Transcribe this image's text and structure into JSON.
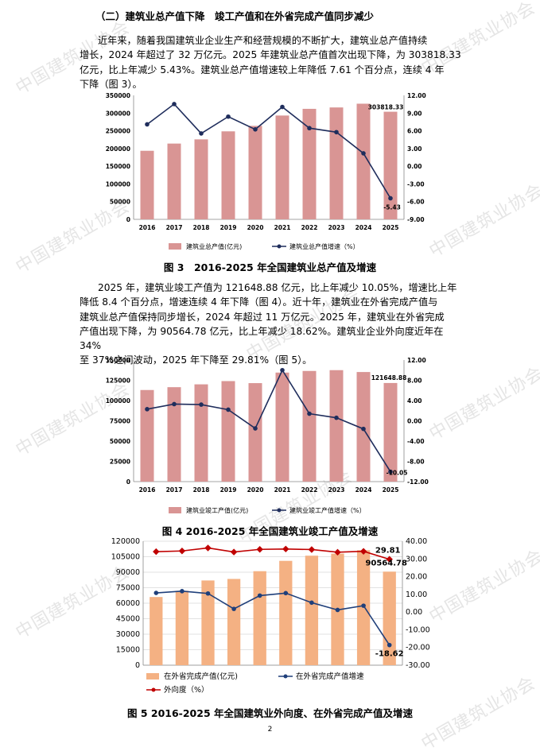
{
  "heading": "（二）建筑业总产值下降　竣工产值和在外省完成产值同步减少",
  "para1": [
    "近年来，随着我国建筑业企业生产和经营规模的不断扩大，建筑业总产值持续",
    "增长，2024 年超过了 32 万亿元。2025 年建筑业总产值首次出现下降，为 303818.33",
    "亿元，比上年减少 5.43%。建筑业总产值增速较上年降低 7.61 个百分点，连续 4 年",
    "下降（图 3）。"
  ],
  "para2": [
    "2025 年，建筑业竣工产值为 121648.88 亿元，比上年减少 10.05%，增速比上年",
    "降低 8.4 个百分点，增速连续 4 年下降（图 4）。近十年，建筑业在外省完成产值与",
    "建筑业总产值保持同步增长，2024 年超过 11 万亿元。2025 年，建筑业在外省完成",
    "产值出现下降，为 90564.78 亿元，比上年减少 18.62%。建筑业企业外向度近年在 34%",
    "至 37%之间波动，2025 年下降至 29.81%（图 5）。"
  ],
  "watermark": "中国建筑业协会",
  "page_number": "2",
  "chart_data": [
    {
      "type": "bar",
      "caption": "图 3　2016-2025 年全国建筑业总产值及增速",
      "categories": [
        "2016",
        "2017",
        "2018",
        "2019",
        "2020",
        "2021",
        "2022",
        "2023",
        "2024",
        "2025"
      ],
      "series": [
        {
          "name": "建筑业总产值(亿元)",
          "type": "bar",
          "values": [
            193567,
            213944,
            225817,
            248446,
            263947,
            293079,
            311980,
            315912,
            326501,
            303818.33
          ]
        },
        {
          "name": "建筑业总产值增速（%）",
          "type": "line",
          "axis": "right",
          "values": [
            7.09,
            10.53,
            5.55,
            8.4,
            6.24,
            10.04,
            6.45,
            5.77,
            2.18,
            -5.43
          ]
        }
      ],
      "left_ticks": [
        "0",
        "50000",
        "100000",
        "150000",
        "200000",
        "250000",
        "300000",
        "350000"
      ],
      "right_ticks": [
        "-9.00",
        "-6.00",
        "-3.00",
        "0.00",
        "3.00",
        "6.00",
        "9.00",
        "12.00"
      ],
      "ylim": [
        0,
        350000
      ],
      "y2lim": [
        -9,
        12
      ],
      "labels": {
        "bar_last": "303818.33",
        "line_last": "-5.43"
      },
      "colors": {
        "bar": "#d99594",
        "line": "#1f2d5c"
      }
    },
    {
      "type": "bar",
      "caption": "图 4  2016-2025 年全国建筑业竣工产值及增速",
      "categories": [
        "2016",
        "2017",
        "2018",
        "2019",
        "2020",
        "2021",
        "2022",
        "2023",
        "2024",
        "2025"
      ],
      "series": [
        {
          "name": "建筑业竣工产值(亿元)",
          "type": "bar",
          "values": [
            113000,
            116500,
            120000,
            124000,
            121500,
            134500,
            136500,
            137500,
            135200,
            121648.88
          ]
        },
        {
          "name": "建筑业竣工产值增速（%）",
          "type": "line",
          "axis": "right",
          "values": [
            2.3,
            3.3,
            3.2,
            2.2,
            -1.5,
            10.0,
            1.4,
            0.6,
            -1.6,
            -10.05
          ]
        }
      ],
      "left_ticks": [
        "0",
        "25000",
        "50000",
        "75000",
        "100000",
        "125000",
        "150000"
      ],
      "right_ticks": [
        "-12.00",
        "-8.00",
        "-4.00",
        "0.00",
        "4.00",
        "8.00",
        "12.00"
      ],
      "ylim": [
        0,
        150000
      ],
      "y2lim": [
        -12,
        12
      ],
      "labels": {
        "bar_last": "121648.88",
        "line_last": "-10.05"
      },
      "colors": {
        "bar": "#d99594",
        "line": "#1f2d5c"
      }
    },
    {
      "type": "bar",
      "caption": "图 5  2016-2025 年全国建筑业外向度、在外省完成产值及增速",
      "categories": [
        "2016",
        "2017",
        "2018",
        "2019",
        "2020",
        "2021",
        "2022",
        "2023",
        "2024",
        "2025"
      ],
      "series": [
        {
          "name": "在外省完成产值(亿元)",
          "type": "bar",
          "values": [
            66000,
            72000,
            82000,
            83500,
            91000,
            101000,
            106000,
            108000,
            111300,
            90564.78
          ]
        },
        {
          "name": "在外省完成产值增速",
          "type": "line",
          "axis": "right",
          "values": [
            10.8,
            11.8,
            10.5,
            1.8,
            9.3,
            10.7,
            5.3,
            1.2,
            3.6,
            -18.62
          ]
        },
        {
          "name": "外向度（%）",
          "type": "line",
          "axis": "right",
          "values": [
            34.1,
            34.5,
            36.2,
            33.9,
            35.4,
            35.6,
            35.3,
            33.8,
            34.3,
            29.81
          ]
        }
      ],
      "left_ticks": [
        "0",
        "15000",
        "30000",
        "45000",
        "60000",
        "75000",
        "90000",
        "105000",
        "120000"
      ],
      "right_ticks": [
        "-30.00",
        "-20.00",
        "-10.00",
        "0.00",
        "10.00",
        "20.00",
        "30.00",
        "40.00"
      ],
      "ylim": [
        0,
        120000
      ],
      "y2lim": [
        -30,
        40
      ],
      "labels": {
        "bar_last": "90564.78",
        "line_last": "-18.62",
        "line2_last": "29.81"
      },
      "colors": {
        "bar": "#f4b183",
        "line": "#1f3f7a",
        "line2": "#c00000"
      }
    }
  ]
}
